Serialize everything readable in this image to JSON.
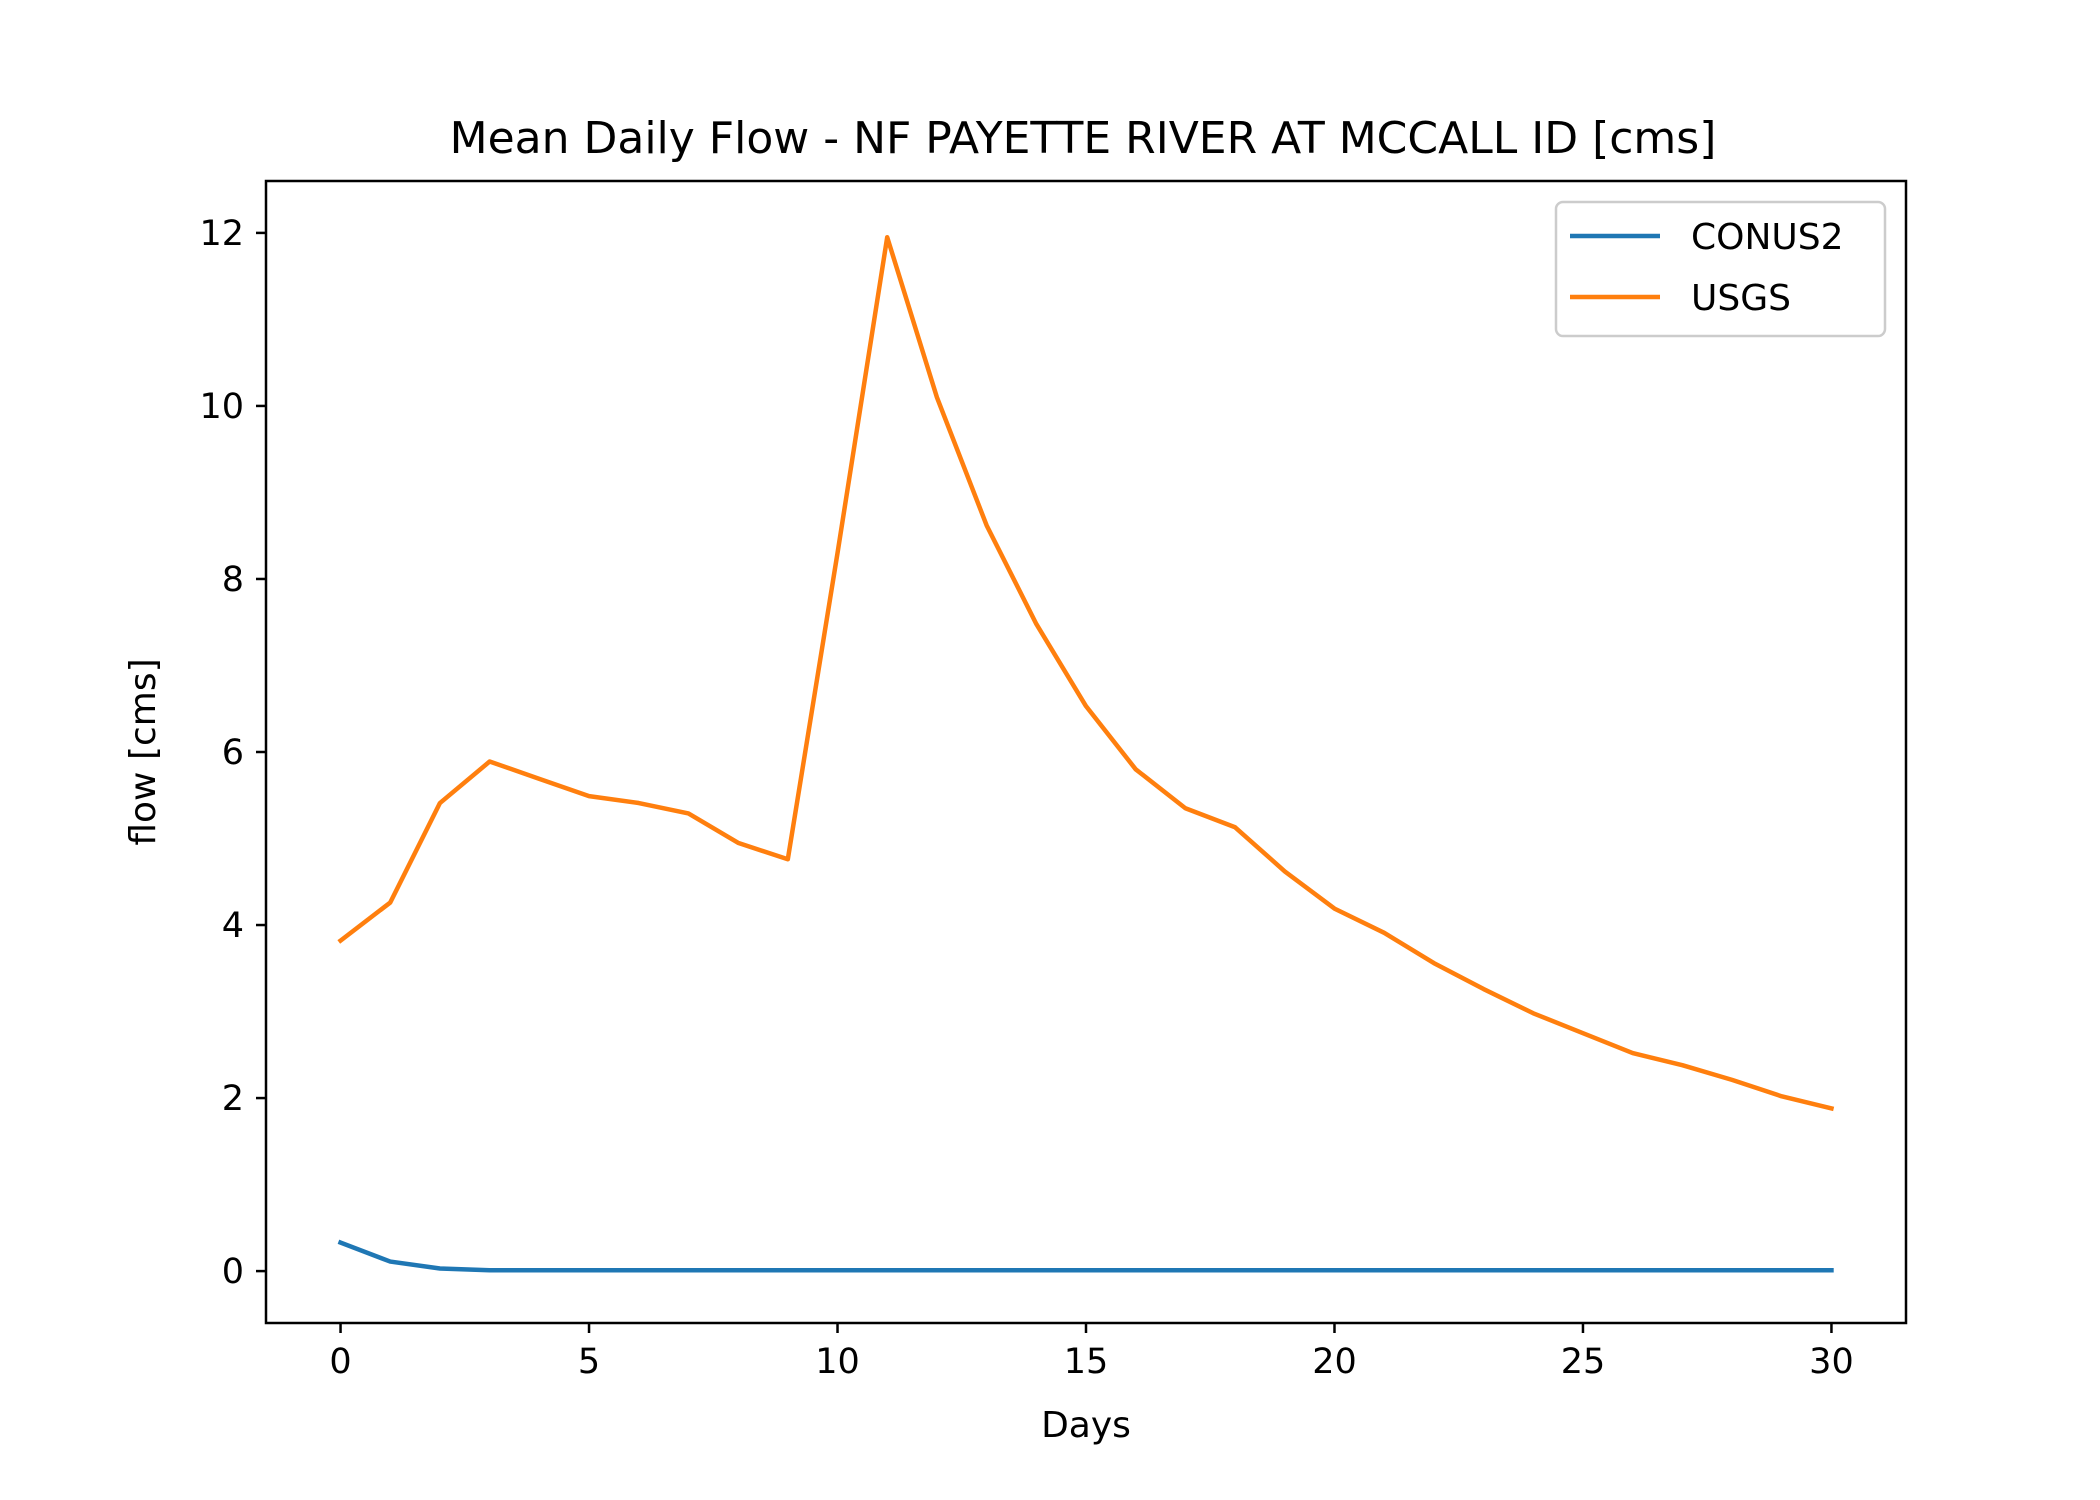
{
  "chart_data": {
    "type": "line",
    "title": "Mean Daily Flow - NF PAYETTE RIVER AT MCCALL ID [cms]",
    "xlabel": "Days",
    "ylabel": "flow [cms]",
    "xlim": [
      -1.5,
      31.5
    ],
    "ylim": [
      -0.6,
      12.6
    ],
    "xticks": [
      0,
      5,
      10,
      15,
      20,
      25,
      30
    ],
    "yticks": [
      0,
      2,
      4,
      6,
      8,
      10,
      12
    ],
    "grid": false,
    "legend_position": "top-right",
    "x": [
      0,
      1,
      2,
      3,
      4,
      5,
      6,
      7,
      8,
      9,
      10,
      11,
      12,
      13,
      14,
      15,
      16,
      17,
      18,
      19,
      20,
      21,
      22,
      23,
      24,
      25,
      26,
      27,
      28,
      29,
      30
    ],
    "series": [
      {
        "name": "CONUS2",
        "color": "#1f77b4",
        "values": [
          0.33,
          0.11,
          0.03,
          0.01,
          0.01,
          0.01,
          0.01,
          0.01,
          0.01,
          0.01,
          0.01,
          0.01,
          0.01,
          0.01,
          0.01,
          0.01,
          0.01,
          0.01,
          0.01,
          0.01,
          0.01,
          0.01,
          0.01,
          0.01,
          0.01,
          0.01,
          0.01,
          0.01,
          0.01,
          0.01,
          0.01
        ]
      },
      {
        "name": "USGS",
        "color": "#ff7f0e",
        "values": [
          3.82,
          4.26,
          5.41,
          5.89,
          5.69,
          5.49,
          5.41,
          5.29,
          4.95,
          4.76,
          8.3,
          11.95,
          10.1,
          8.62,
          7.48,
          6.53,
          5.8,
          5.35,
          5.13,
          4.62,
          4.19,
          3.91,
          3.56,
          3.26,
          2.98,
          2.75,
          2.52,
          2.38,
          2.21,
          2.02,
          1.88
        ]
      }
    ]
  }
}
